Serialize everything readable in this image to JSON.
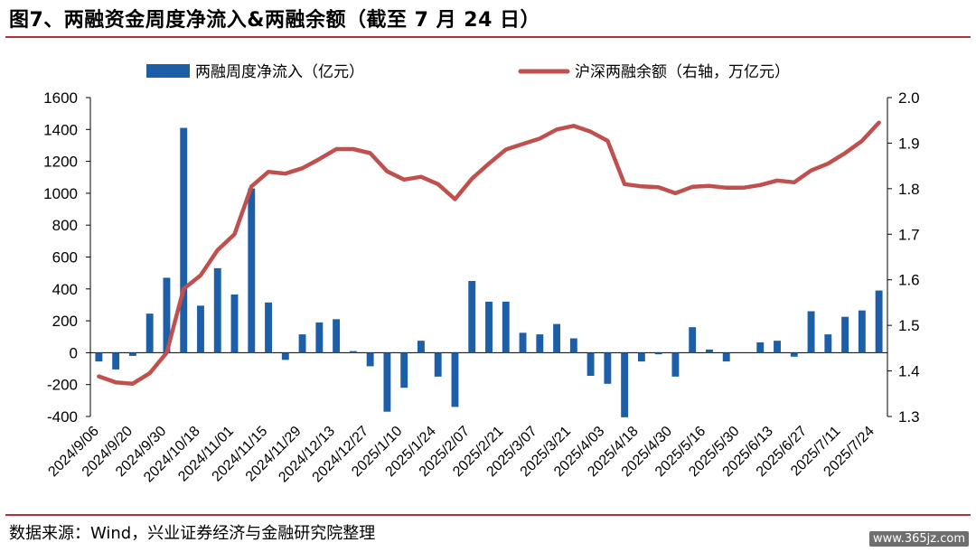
{
  "figure": {
    "title": "图7、两融资金周度净流入&两融余额（截至 7 月 24 日）",
    "source": "数据来源：Wind，兴业证券经济与金融研究院整理",
    "watermark": "www.365jz.com"
  },
  "colors": {
    "bar": "#1c5ea8",
    "line": "#c0504d",
    "rule": "#a9343a"
  },
  "chart_data": {
    "type": "bar",
    "legend": {
      "placement": "top",
      "bar_label": "两融周度净流入（亿元）",
      "line_label": "沪深两融余额（右轴，万亿元）"
    },
    "y_left": {
      "min": -400,
      "max": 1600,
      "ticks": [
        -400,
        -200,
        0,
        200,
        400,
        600,
        800,
        1000,
        1200,
        1400,
        1600
      ]
    },
    "y_right": {
      "min": 1.3,
      "max": 2.0,
      "ticks": [
        "1.3",
        "1.4",
        "1.5",
        "1.6",
        "1.7",
        "1.8",
        "1.9",
        "2.0"
      ]
    },
    "x_tick_labels": [
      "2024/9/06",
      "2024/9/20",
      "2024/9/30",
      "2024/10/18",
      "2024/11/01",
      "2024/11/15",
      "2024/11/29",
      "2024/12/13",
      "2024/12/27",
      "2025/1/10",
      "2025/1/24",
      "2025/2/07",
      "2025/2/21",
      "2025/3/07",
      "2025/3/21",
      "2025/4/03",
      "2025/4/18",
      "2025/4/30",
      "2025/5/16",
      "2025/5/30",
      "2025/6/13",
      "2025/6/27",
      "2025/7/11",
      "2025/7/24"
    ],
    "grid": false,
    "series": [
      {
        "name": "两融周度净流入（亿元）",
        "type": "bar",
        "axis": "left",
        "values": [
          -55,
          -105,
          -20,
          245,
          470,
          1410,
          295,
          530,
          365,
          1030,
          315,
          -45,
          115,
          190,
          210,
          10,
          -85,
          -370,
          -220,
          75,
          -150,
          -340,
          450,
          320,
          320,
          125,
          115,
          180,
          90,
          -145,
          -195,
          -405,
          -55,
          -10,
          -150,
          160,
          20,
          -55,
          0,
          65,
          75,
          -25,
          260,
          115,
          225,
          265,
          390
        ]
      },
      {
        "name": "沪深两融余额（右轴，万亿元）",
        "type": "line",
        "axis": "right",
        "values": [
          1.388,
          1.375,
          1.372,
          1.395,
          1.44,
          1.58,
          1.61,
          1.665,
          1.7,
          1.805,
          1.837,
          1.833,
          1.845,
          1.865,
          1.887,
          1.887,
          1.878,
          1.838,
          1.82,
          1.826,
          1.81,
          1.777,
          1.822,
          1.855,
          1.886,
          1.898,
          1.91,
          1.93,
          1.938,
          1.925,
          1.905,
          1.81,
          1.805,
          1.803,
          1.79,
          1.804,
          1.806,
          1.802,
          1.802,
          1.808,
          1.818,
          1.814,
          1.84,
          1.855,
          1.878,
          1.905,
          1.945
        ]
      }
    ]
  }
}
